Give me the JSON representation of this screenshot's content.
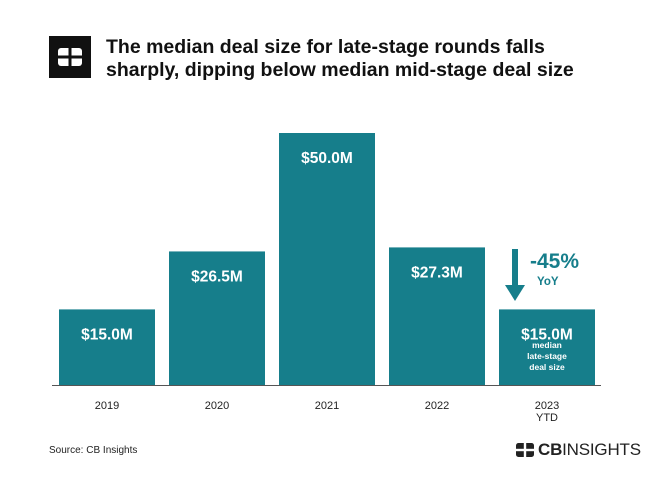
{
  "header": {
    "title_line1": "The median deal size for late-stage rounds falls",
    "title_line2": "sharply, dipping below median mid-stage deal size"
  },
  "footer": {
    "source": "Source: CB Insights",
    "brand_bold": "CB",
    "brand_light": "INSIGHTS"
  },
  "colors": {
    "bar": "#167e8b",
    "axis": "#555555",
    "logo": "#111111"
  },
  "chart_data": {
    "type": "bar",
    "categories": [
      "2019",
      "2020",
      "2021",
      "2022",
      "2023"
    ],
    "category_sublabels": [
      "",
      "",
      "",
      "",
      "YTD"
    ],
    "values": [
      15.0,
      26.5,
      50.0,
      27.3,
      15.0
    ],
    "value_labels": [
      "$15.0M",
      "$26.5M",
      "$50.0M",
      "$27.3M",
      "$15.0M"
    ],
    "title": "The median deal size for late-stage rounds falls sharply, dipping below median mid-stage deal size",
    "ylim": [
      0,
      50
    ],
    "grid": false,
    "annotations": [
      {
        "category": "2023",
        "bar_note": "median late-stage deal size"
      },
      {
        "category": "2023",
        "change": "-45%",
        "change_label": "YoY",
        "arrow": "down"
      }
    ]
  }
}
